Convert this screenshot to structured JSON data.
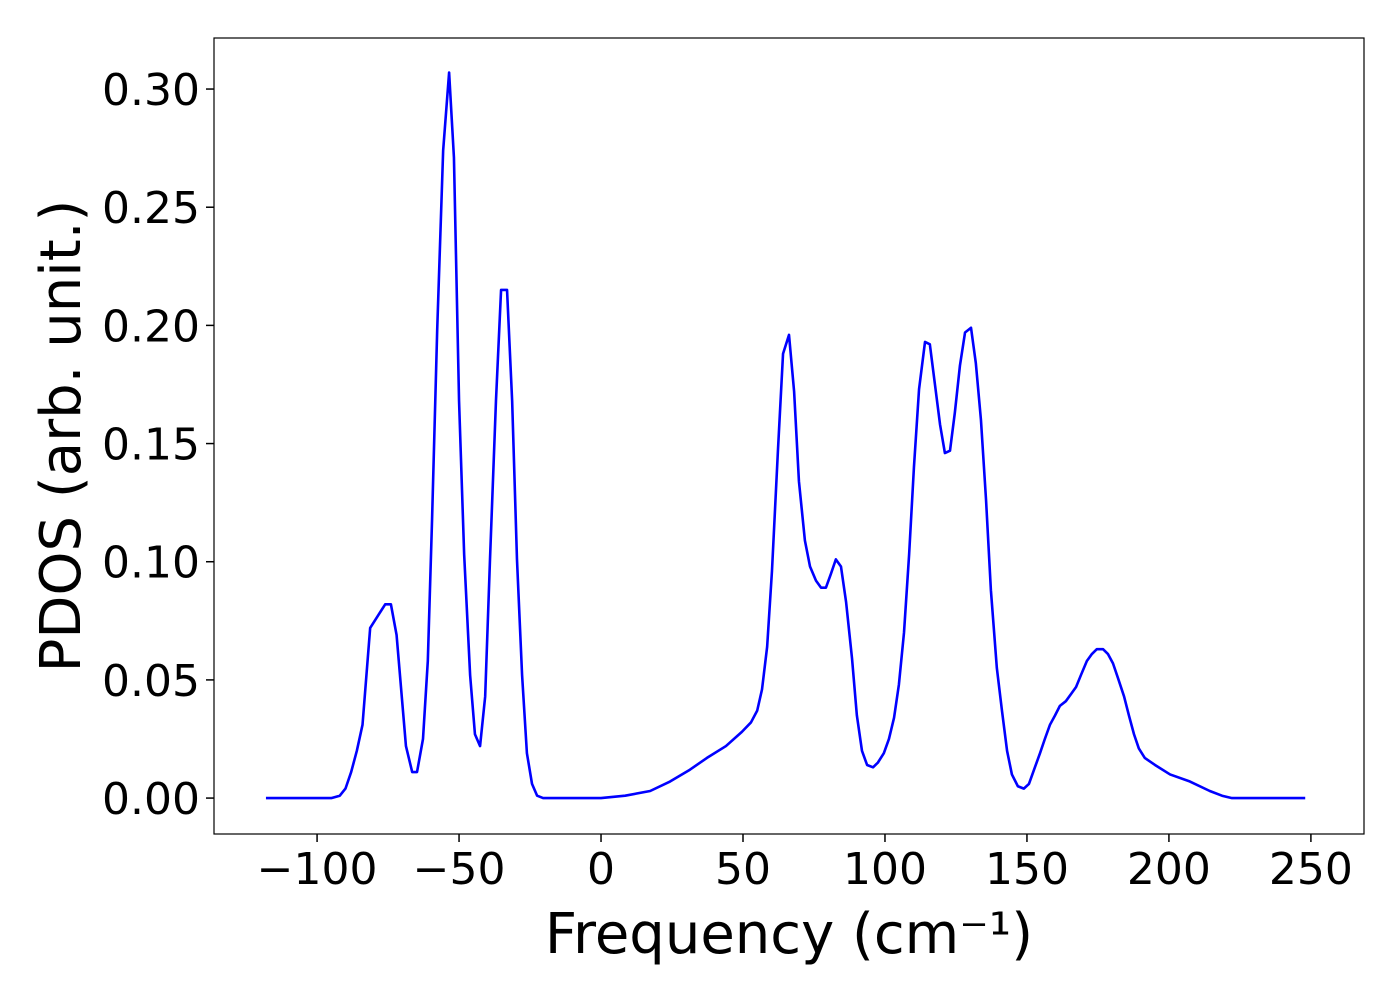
{
  "chart_data": {
    "type": "line",
    "x_label": "Frequency (cm⁻¹)",
    "y_label": "PDOS (arb. unit.)",
    "xlim": [
      -136.3,
      268.7
    ],
    "ylim": [
      -0.0152,
      0.3216
    ],
    "xticks": [
      {
        "value": -100,
        "label": "−100"
      },
      {
        "value": -50,
        "label": "−50"
      },
      0,
      50,
      100,
      150,
      200,
      250
    ],
    "yticks": [
      {
        "value": 0,
        "label": "0.00"
      },
      0.05,
      {
        "value": 0.1,
        "label": "0.10"
      },
      0.15,
      {
        "value": 0.2,
        "label": "0.20"
      },
      0.25,
      {
        "value": 0.3,
        "label": "0.30"
      }
    ],
    "x": [
      -118,
      -95,
      -92,
      -90,
      -88,
      -86,
      -84,
      -81.3,
      -76,
      -74,
      -72,
      -68.7,
      -66.5,
      -64.8,
      -62.7,
      -61,
      -59.5,
      -57.7,
      -55.6,
      -53.5,
      -51.8,
      -50,
      -48.2,
      -46.1,
      -44.4,
      -42.6,
      -40.8,
      -39.1,
      -37,
      -35.2,
      -33.1,
      -31.3,
      -29.6,
      -27.8,
      -26.1,
      -24.3,
      -22.5,
      -20.4,
      0,
      8.5,
      17.3,
      24.3,
      31.3,
      37.3,
      44,
      49.6,
      52.8,
      55,
      56.7,
      58.5,
      60.2,
      62.3,
      64.1,
      66.2,
      68,
      69.7,
      71.8,
      73.6,
      75.7,
      77.5,
      79.2,
      81,
      82.7,
      84.5,
      86.3,
      88.4,
      90.1,
      91.9,
      93.7,
      95.8,
      97.5,
      99.6,
      101.4,
      103.2,
      104.9,
      106.7,
      108.5,
      110.2,
      112,
      114.1,
      115.8,
      117.6,
      119.4,
      121.1,
      122.9,
      124.6,
      126.4,
      128.2,
      130.3,
      132,
      133.8,
      135.6,
      137.3,
      139.4,
      141.2,
      143,
      144.7,
      146.8,
      148.9,
      150.7,
      152.8,
      154.6,
      156.3,
      158.1,
      159.9,
      161.6,
      163.7,
      165.5,
      167.3,
      169,
      171.1,
      172.9,
      174.6,
      176.8,
      178.5,
      180.3,
      182,
      184.2,
      185.9,
      187.7,
      189.4,
      191.5,
      195.1,
      200.4,
      207.4,
      214.4,
      218.7,
      222.2,
      248
    ],
    "series": [
      {
        "color": "#0000ff",
        "values": [
          0,
          0,
          0.001,
          0.004,
          0.011,
          0.02,
          0.031,
          0.072,
          0.082,
          0.082,
          0.069,
          0.022,
          0.011,
          0.011,
          0.025,
          0.058,
          0.118,
          0.198,
          0.274,
          0.307,
          0.271,
          0.168,
          0.103,
          0.052,
          0.027,
          0.022,
          0.043,
          0.101,
          0.168,
          0.215,
          0.215,
          0.168,
          0.101,
          0.052,
          0.019,
          0.006,
          0.001,
          0,
          0,
          0.001,
          0.003,
          0.007,
          0.012,
          0.017,
          0.022,
          0.028,
          0.032,
          0.037,
          0.046,
          0.064,
          0.096,
          0.147,
          0.188,
          0.196,
          0.172,
          0.134,
          0.109,
          0.098,
          0.092,
          0.089,
          0.089,
          0.095,
          0.101,
          0.098,
          0.083,
          0.059,
          0.035,
          0.02,
          0.014,
          0.013,
          0.015,
          0.019,
          0.025,
          0.034,
          0.048,
          0.07,
          0.103,
          0.14,
          0.173,
          0.193,
          0.192,
          0.175,
          0.158,
          0.146,
          0.147,
          0.163,
          0.183,
          0.197,
          0.199,
          0.184,
          0.16,
          0.126,
          0.088,
          0.055,
          0.037,
          0.02,
          0.01,
          0.005,
          0.004,
          0.006,
          0.013,
          0.019,
          0.025,
          0.031,
          0.035,
          0.039,
          0.041,
          0.044,
          0.047,
          0.052,
          0.058,
          0.061,
          0.063,
          0.063,
          0.061,
          0.057,
          0.051,
          0.043,
          0.035,
          0.027,
          0.021,
          0.017,
          0.014,
          0.01,
          0.007,
          0.003,
          0.001,
          0,
          0
        ]
      }
    ]
  }
}
